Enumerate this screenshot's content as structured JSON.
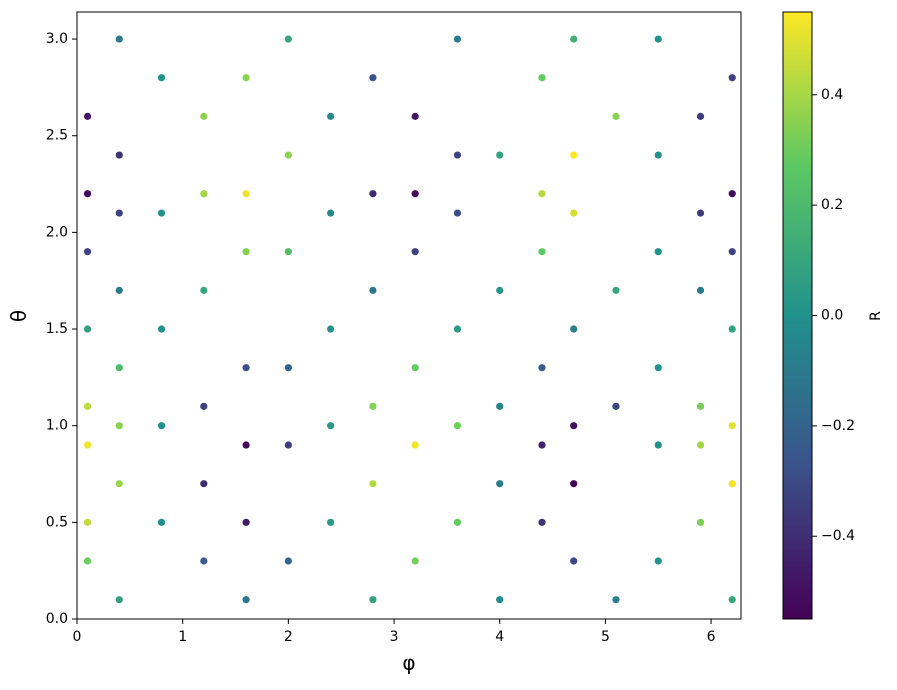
{
  "chart_data": {
    "type": "scatter",
    "xlabel": "φ",
    "ylabel": "θ",
    "colorbar_label": "R",
    "xlim": [
      0,
      6.283
    ],
    "xticks": [
      0,
      1,
      2,
      3,
      4,
      5,
      6
    ],
    "ylim": [
      0,
      3.14
    ],
    "yticks": [
      {
        "value": 0,
        "label": "0.0"
      },
      {
        "value": 0.5,
        "label": "0.5"
      },
      {
        "value": 1,
        "label": "1.0"
      },
      {
        "value": 1.5,
        "label": "1.5"
      },
      {
        "value": 2,
        "label": "2.0"
      },
      {
        "value": 2.5,
        "label": "2.5"
      },
      {
        "value": 3,
        "label": "3.0"
      }
    ],
    "clim": [
      -0.55,
      0.55
    ],
    "cticks": [
      {
        "value": -0.4,
        "label": "−0.4"
      },
      {
        "value": -0.2,
        "label": "−0.2"
      },
      {
        "value": 0,
        "label": "0.0"
      },
      {
        "value": 0.2,
        "label": "0.2"
      },
      {
        "value": 0.4,
        "label": "0.4"
      }
    ],
    "colormap": "viridis",
    "x": [
      0.4,
      1.6,
      2.8,
      4.0,
      5.1,
      6.2,
      0.1,
      1.2,
      2.0,
      3.2,
      4.7,
      5.5,
      0.8,
      1.6,
      2.4,
      3.6,
      4.4,
      5.9,
      0.1,
      0.4,
      1.2,
      2.8,
      4.0,
      4.7,
      6.2,
      0.1,
      1.6,
      2.0,
      3.2,
      4.4,
      5.5,
      5.9,
      0.4,
      0.8,
      2.4,
      3.6,
      4.7,
      6.2,
      0.1,
      1.2,
      2.8,
      4.0,
      5.1,
      5.9,
      0.4,
      1.6,
      2.0,
      3.2,
      4.4,
      5.5,
      0.8,
      2.4,
      3.6,
      4.7,
      6.2,
      0.1,
      0.4,
      1.2,
      2.8,
      4.0,
      5.1,
      5.9,
      0.1,
      1.6,
      2.0,
      3.2,
      4.4,
      5.5,
      6.2,
      0.4,
      0.8,
      2.4,
      3.6,
      4.7,
      5.9,
      0.1,
      1.2,
      1.6,
      2.8,
      3.2,
      4.4,
      6.2,
      0.4,
      2.0,
      3.6,
      4.0,
      4.7,
      5.5,
      0.1,
      1.2,
      2.4,
      3.2,
      5.1,
      5.9,
      0.8,
      1.6,
      2.8,
      4.4,
      6.2,
      0.4,
      2.0,
      3.6,
      4.7,
      5.5
    ],
    "y": [
      0.1,
      0.1,
      0.1,
      0.1,
      0.1,
      0.1,
      0.3,
      0.3,
      0.3,
      0.3,
      0.3,
      0.3,
      0.5,
      0.5,
      0.5,
      0.5,
      0.5,
      0.5,
      0.5,
      0.7,
      0.7,
      0.7,
      0.7,
      0.7,
      0.7,
      0.9,
      0.9,
      0.9,
      0.9,
      0.9,
      0.9,
      0.9,
      1.0,
      1.0,
      1.0,
      1.0,
      1.0,
      1.0,
      1.1,
      1.1,
      1.1,
      1.1,
      1.1,
      1.1,
      1.3,
      1.3,
      1.3,
      1.3,
      1.3,
      1.3,
      1.5,
      1.5,
      1.5,
      1.5,
      1.5,
      1.5,
      1.7,
      1.7,
      1.7,
      1.7,
      1.7,
      1.7,
      1.9,
      1.9,
      1.9,
      1.9,
      1.9,
      1.9,
      1.9,
      2.1,
      2.1,
      2.1,
      2.1,
      2.1,
      2.1,
      2.2,
      2.2,
      2.2,
      2.2,
      2.2,
      2.2,
      2.2,
      2.4,
      2.4,
      2.4,
      2.4,
      2.4,
      2.4,
      2.6,
      2.6,
      2.6,
      2.6,
      2.6,
      2.6,
      2.8,
      2.8,
      2.8,
      2.8,
      2.8,
      3.0,
      3.0,
      3.0,
      3.0,
      3.0
    ],
    "c": [
      0.08,
      -0.11,
      0.08,
      -0.02,
      -0.08,
      0.11,
      0.3,
      -0.23,
      -0.2,
      0.31,
      -0.31,
      0.0,
      -0.01,
      -0.46,
      0.04,
      0.28,
      -0.38,
      0.33,
      0.45,
      0.38,
      -0.4,
      0.42,
      -0.08,
      -0.54,
      0.54,
      0.53,
      -0.53,
      -0.35,
      0.53,
      -0.44,
      0.0,
      0.39,
      0.35,
      -0.01,
      0.04,
      0.3,
      -0.5,
      0.5,
      0.44,
      -0.33,
      0.34,
      -0.06,
      -0.32,
      0.32,
      0.2,
      -0.28,
      -0.19,
      0.28,
      -0.23,
      0.0,
      0.0,
      0.01,
      0.05,
      -0.08,
      0.08,
      0.08,
      -0.1,
      0.1,
      -0.11,
      0.02,
      0.1,
      -0.1,
      -0.33,
      0.34,
      0.22,
      -0.33,
      0.27,
      0.0,
      -0.33,
      -0.33,
      0.01,
      -0.04,
      -0.29,
      0.48,
      -0.35,
      -0.51,
      0.39,
      0.52,
      -0.41,
      -0.52,
      0.43,
      -0.52,
      -0.38,
      0.36,
      -0.33,
      0.08,
      0.55,
      0.0,
      -0.48,
      0.36,
      -0.04,
      -0.48,
      0.35,
      -0.35,
      0.01,
      0.35,
      -0.27,
      0.28,
      -0.34,
      -0.11,
      0.1,
      -0.09,
      0.15,
      0.0
    ]
  }
}
